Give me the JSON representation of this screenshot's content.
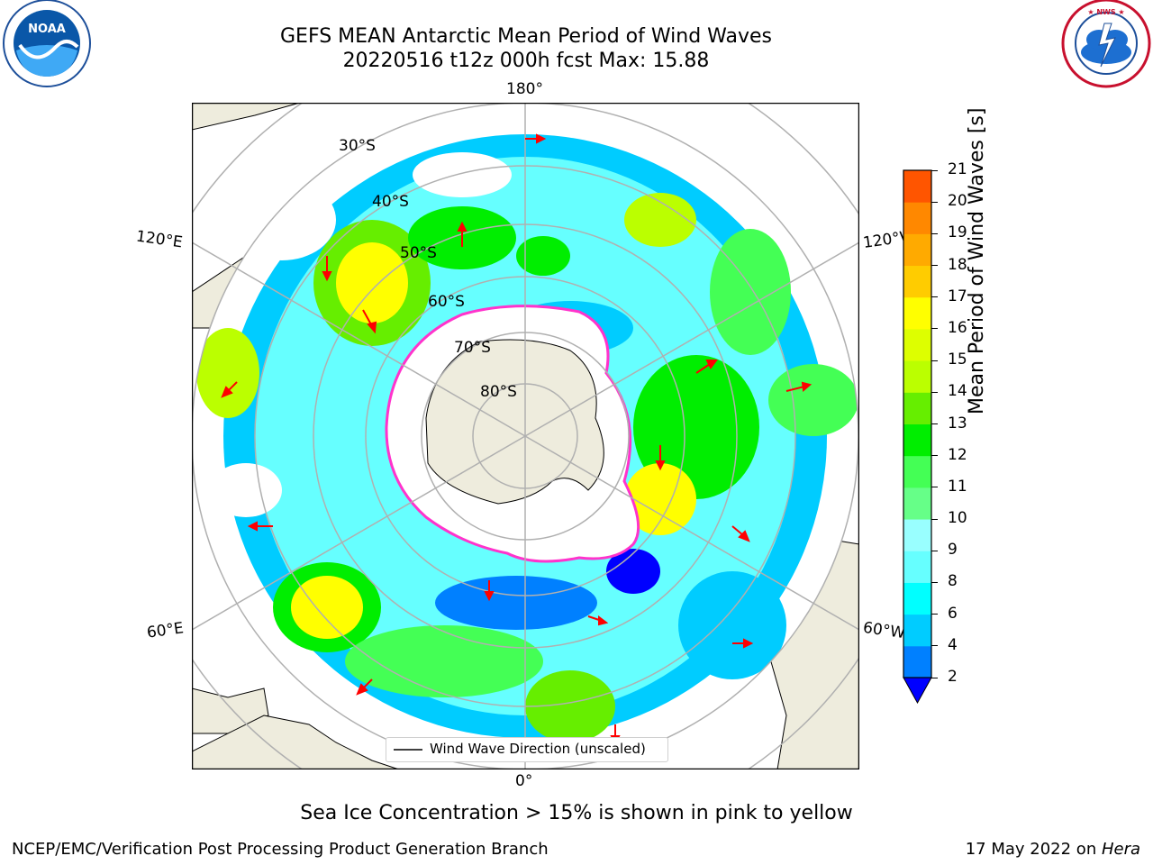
{
  "header": {
    "title_line1": "GEFS MEAN Antarctic Mean Period of Wind Waves",
    "title_line2": "20220516 t12z 000h fcst   Max: 15.88"
  },
  "logos": {
    "left_name": "NOAA",
    "left_ring_text": "NATIONAL OCEANIC AND ATMOSPHERIC ADMINISTRATION · U.S. DEPARTMENT OF COMMERCE",
    "right_ring_text": "NATIONAL WEATHER SERVICE"
  },
  "map": {
    "lon_labels": {
      "top": "180°",
      "bottom": "0°",
      "left_upper": "120°E",
      "right_upper": "120°W",
      "left_lower": "60°E",
      "right_lower": "60°W"
    },
    "lat_labels": [
      "30°S",
      "40°S",
      "50°S",
      "60°S",
      "70°S",
      "80°S"
    ],
    "legend_label": "Wind Wave Direction (unscaled)",
    "colors": {
      "land": "#eeecdd",
      "arrow": "#ff0000",
      "ice_edge": "#ff33cc",
      "ice_fringe": "#ffcc33"
    }
  },
  "colorbar": {
    "label": "Mean Period of Wind Waves [s]",
    "ticks": [
      "2",
      "4",
      "6",
      "8",
      "9",
      "10",
      "11",
      "12",
      "13",
      "14",
      "15",
      "16",
      "17",
      "18",
      "19",
      "20",
      "21"
    ],
    "colors": [
      "#0080ff",
      "#00ccff",
      "#00ffff",
      "#66ffff",
      "#99ffff",
      "#66ff88",
      "#44ff55",
      "#00ee00",
      "#66ee00",
      "#bbff00",
      "#ddff00",
      "#ffff00",
      "#ffcc00",
      "#ffaa00",
      "#ff8800",
      "#ff5500",
      "#ff2200",
      "#ff0000"
    ],
    "under_color": "#0000ff"
  },
  "chart_data": {
    "type": "map",
    "projection": "south polar stereographic",
    "variable": "Mean Period of Wind Waves [s]",
    "max": 15.88,
    "colorbar_range": [
      2,
      21
    ],
    "colorbar_levels": [
      2,
      4,
      6,
      8,
      9,
      10,
      11,
      12,
      13,
      14,
      15,
      16,
      17,
      18,
      19,
      20,
      21
    ]
  },
  "footer": {
    "note": "Sea Ice Concentration > 15% is shown in pink to yellow",
    "credit": "NCEP/EMC/Verification Post Processing Product Generation Branch",
    "date": "17 May 2022 on ",
    "machine": "Hera"
  }
}
